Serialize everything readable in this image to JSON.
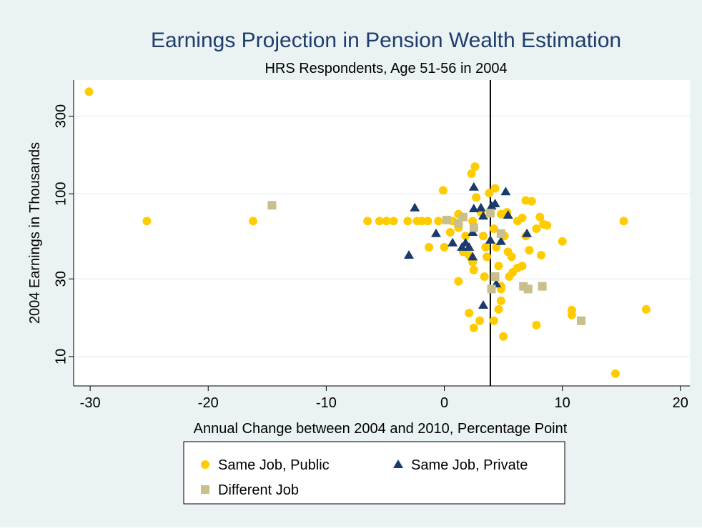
{
  "chart_data": {
    "type": "scatter",
    "title": "Earnings Projection in Pension Wealth Estimation",
    "subtitle": "HRS Respondents, Age 51-56 in 2004",
    "x_label": "Annual Change between 2004 and 2010, Percentage Point",
    "y_label": "2004 Earnings in Thousands",
    "xlim": [
      -31.4,
      20.8
    ],
    "ylim": [
      6.6,
      500
    ],
    "xticks": [
      -30,
      -20,
      -10,
      0,
      10,
      20
    ],
    "yticks": [
      10,
      30,
      100,
      300
    ],
    "y_log": true,
    "grid": true,
    "xline": 3.9,
    "legend": "bottom",
    "series": [
      {
        "name": "Same Job, Public",
        "color": "#ffcc00",
        "marker": "circle",
        "x": [
          -30.1,
          -25.2,
          -16.2,
          -6.5,
          -5.5,
          -4.9,
          -4.3,
          -3.1,
          -2.3,
          -1.9,
          -1.4,
          -0.5,
          -0.1,
          -1.3,
          0.5,
          0,
          1.2,
          1.2,
          1.6,
          2.1,
          2.4,
          2.5,
          2.4,
          2.6,
          2.3,
          2.7,
          3.1,
          3.3,
          3.5,
          3.6,
          3.4,
          3.8,
          4.3,
          4.2,
          4.4,
          4.6,
          4.8,
          4.8,
          4.8,
          4.6,
          4.2,
          5.0,
          3.0,
          2.5,
          2.1,
          5.4,
          5.7,
          5.5,
          5.8,
          6.2,
          6.6,
          5.3,
          6.2,
          6.6,
          6.9,
          7.4,
          7.8,
          8.1,
          8.4,
          8.7,
          8.2,
          7.8,
          10.8,
          10.0,
          10.8,
          15.2,
          17.1,
          14.5,
          7.2,
          6.9,
          1.8,
          1.2,
          0.7,
          4.8,
          5.1
        ],
        "values": [
          424,
          68,
          68,
          68,
          68,
          68,
          68,
          68,
          68,
          68,
          68,
          68,
          105,
          47,
          58,
          47,
          75,
          29,
          44,
          42,
          38,
          34,
          68,
          147,
          133,
          95,
          77,
          55,
          47,
          41,
          31,
          101,
          108,
          61,
          47,
          36,
          27,
          26,
          22,
          19.5,
          16.6,
          13.3,
          16.6,
          15,
          18.5,
          44,
          41,
          31,
          33,
          35,
          36,
          77,
          68,
          71,
          91,
          90,
          61,
          72,
          65,
          64,
          42,
          15.6,
          18,
          51,
          19.3,
          68,
          19.5,
          7.85,
          45,
          55,
          55,
          62,
          68,
          75,
          55
        ]
      },
      {
        "name": "Same Job, Private",
        "color": "#1a3a6b",
        "marker": "triangle",
        "x": [
          -2.5,
          -3.0,
          -0.7,
          0.7,
          1.5,
          1.8,
          2.1,
          2.4,
          2.4,
          2.5,
          2.5,
          3.1,
          3.3,
          4.0,
          4.3,
          5.2,
          5.4,
          4.8,
          3.9,
          3.3,
          4.4,
          7.0
        ],
        "values": [
          82,
          42,
          57,
          50,
          47,
          50,
          47,
          58,
          41,
          110,
          81,
          82,
          73,
          84,
          87,
          103,
          74,
          51,
          52,
          20.7,
          28,
          57
        ]
      },
      {
        "name": "Different Job",
        "color": "#c8bf8c",
        "marker": "square",
        "x": [
          -14.6,
          0.2,
          1.2,
          1.6,
          2.5,
          3.9,
          4.8,
          4.3,
          4.0,
          6.7,
          7.1,
          8.3,
          11.6
        ],
        "values": [
          85,
          69,
          66,
          72,
          62,
          76,
          57,
          31,
          26,
          27,
          26,
          27,
          16.6
        ]
      }
    ]
  }
}
